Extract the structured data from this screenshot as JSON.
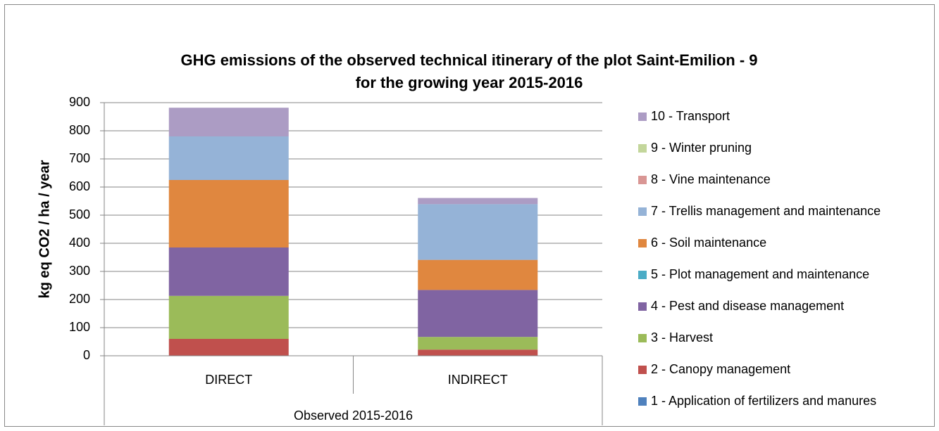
{
  "chart_data": {
    "type": "stacked_bar",
    "title": [
      "GHG emissions of the observed technical itinerary of the plot Saint-Emilion - 9",
      "for the growing year 2015-2016"
    ],
    "y_label": "kg eq CO2 / ha / year",
    "categories": [
      "DIRECT",
      "INDIRECT"
    ],
    "group_label": "Observed 2015-2016",
    "ylim": [
      0,
      900
    ],
    "yticks": [
      0,
      100,
      200,
      300,
      400,
      500,
      600,
      700,
      800,
      900
    ],
    "grid": true,
    "legend": "right",
    "series": [
      {
        "name": "1 - Application of fertilizers and manures",
        "color": "#4F81BD",
        "values": [
          0,
          0
        ]
      },
      {
        "name": "2 - Canopy management",
        "color": "#C0504D",
        "values": [
          60,
          22
        ]
      },
      {
        "name": "3 - Harvest",
        "color": "#9BBB59",
        "values": [
          153,
          45
        ]
      },
      {
        "name": "4 - Pest and disease management",
        "color": "#8064A2",
        "values": [
          172,
          167
        ]
      },
      {
        "name": "5 - Plot management and maintenance",
        "color": "#4BACC6",
        "values": [
          0,
          0
        ]
      },
      {
        "name": "6 - Soil maintenance",
        "color": "#E0873F",
        "values": [
          240,
          107
        ]
      },
      {
        "name": "7 - Trellis management and maintenance",
        "color": "#95B3D7",
        "values": [
          155,
          198
        ]
      },
      {
        "name": "8 - Vine maintenance",
        "color": "#D99694",
        "values": [
          0,
          0
        ]
      },
      {
        "name": "9 - Winter pruning",
        "color": "#C3D69B",
        "values": [
          0,
          0
        ]
      },
      {
        "name": "10 - Transport",
        "color": "#AC9CC4",
        "values": [
          102,
          22
        ]
      }
    ]
  }
}
